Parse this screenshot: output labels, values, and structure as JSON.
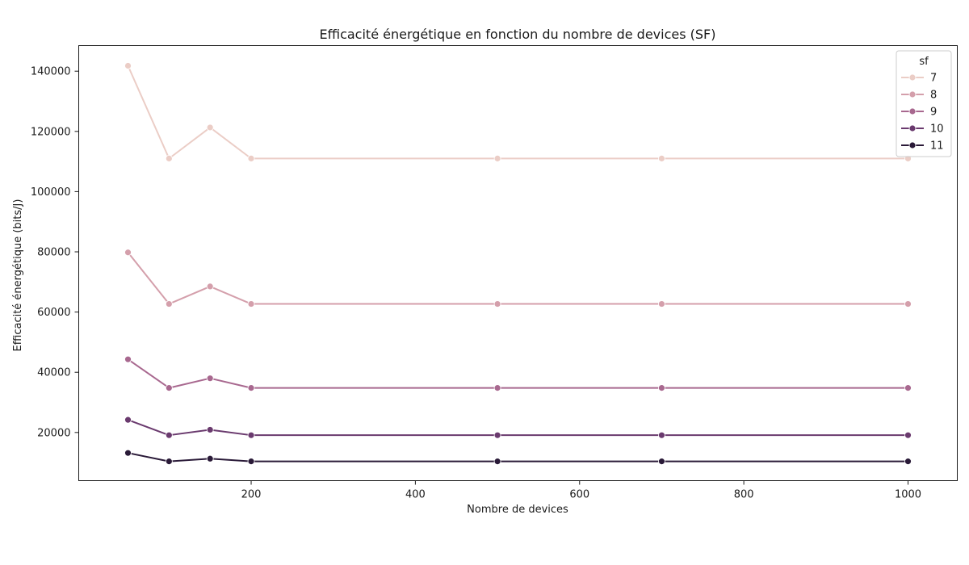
{
  "chart_data": {
    "type": "line",
    "title": "Efficacité énergétique en fonction du nombre de devices (SF)",
    "xlabel": "Nombre de devices",
    "ylabel": "Efficacité énergétique (bits/J)",
    "x": [
      50,
      100,
      150,
      200,
      500,
      700,
      1000
    ],
    "xlim": [
      -10,
      1060
    ],
    "ylim": [
      4000,
      148500
    ],
    "xticks": [
      200,
      400,
      600,
      800,
      1000
    ],
    "yticks": [
      20000,
      40000,
      60000,
      80000,
      100000,
      120000,
      140000
    ],
    "grid": false,
    "legend": {
      "title": "sf",
      "placement": "top-right"
    },
    "series": [
      {
        "name": "7",
        "color": "#ebcdc6",
        "values": [
          141800,
          111000,
          121300,
          111000,
          111000,
          111000,
          111000
        ]
      },
      {
        "name": "8",
        "color": "#d49fab",
        "values": [
          79800,
          62700,
          68500,
          62700,
          62700,
          62700,
          62700
        ]
      },
      {
        "name": "9",
        "color": "#a8688f",
        "values": [
          44300,
          34800,
          38000,
          34800,
          34800,
          34800,
          34800
        ]
      },
      {
        "name": "10",
        "color": "#6a3a6e",
        "values": [
          24200,
          19100,
          20900,
          19100,
          19100,
          19100,
          19100
        ]
      },
      {
        "name": "11",
        "color": "#2a1a38",
        "values": [
          13200,
          10400,
          11300,
          10400,
          10400,
          10400,
          10400
        ]
      }
    ]
  }
}
